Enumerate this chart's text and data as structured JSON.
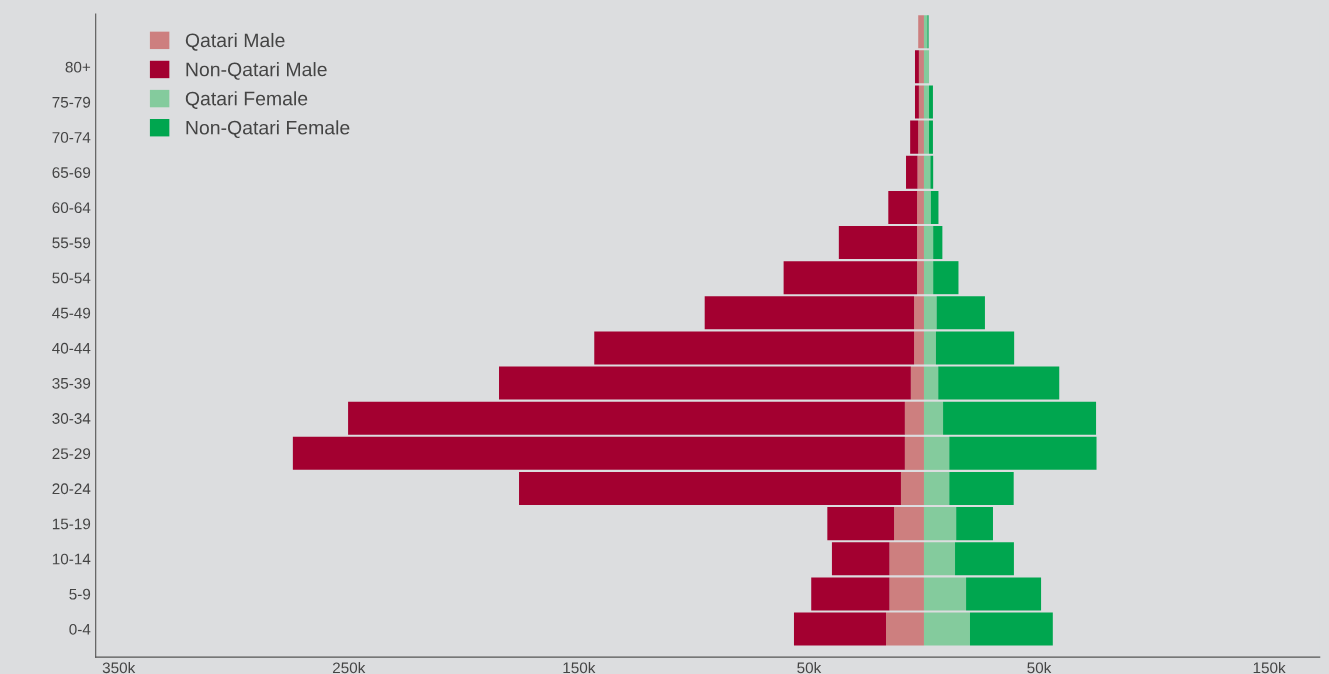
{
  "chart_data": {
    "type": "bar",
    "orientation": "horizontal",
    "stacked": true,
    "categories": [
      null,
      "80+",
      "75-79",
      "70-74",
      "65-69",
      "60-64",
      "55-59",
      "50-54",
      "45-49",
      "40-44",
      "35-39",
      "30-34",
      "25-29",
      "20-24",
      "15-19",
      "10-14",
      "5-9",
      "0-4"
    ],
    "series": [
      {
        "name": "Qatari Male",
        "color": "#cd7f7f",
        "values": [
          -2500,
          -2200,
          -2200,
          -2500,
          -2800,
          -3000,
          -3000,
          -3000,
          -4300,
          -4300,
          -5700,
          -8300,
          -8300,
          -10000,
          -13000,
          -15000,
          -15000,
          -16500
        ]
      },
      {
        "name": "Non-Qatari Male",
        "color": "#a30030",
        "values": [
          null,
          -1700,
          -1700,
          -3500,
          -5000,
          -12500,
          -34000,
          -58000,
          -91000,
          -139000,
          -179000,
          -242000,
          -266000,
          -166000,
          -29000,
          -25000,
          -34000,
          -40000
        ]
      },
      {
        "name": "Qatari Female",
        "color": "#84cb9d",
        "values": [
          1500,
          2200,
          2200,
          2200,
          2800,
          3000,
          4000,
          4000,
          5500,
          5200,
          6200,
          8300,
          11000,
          11000,
          14000,
          13500,
          18300,
          20000
        ]
      },
      {
        "name": "Non-Qatari Female",
        "color": "#00a64f",
        "values": [
          500,
          null,
          1700,
          1700,
          1200,
          3300,
          4000,
          11000,
          21000,
          34000,
          52600,
          66500,
          64000,
          28000,
          16000,
          25600,
          32600,
          36000
        ]
      }
    ],
    "xlim": [
      -360000,
      172000
    ],
    "xticks": [
      {
        "value": -350000,
        "label": "350k"
      },
      {
        "value": -250000,
        "label": "250k"
      },
      {
        "value": -150000,
        "label": "150k"
      },
      {
        "value": -50000,
        "label": "50k"
      },
      {
        "value": 50000,
        "label": "50k"
      },
      {
        "value": 150000,
        "label": "150k"
      }
    ],
    "grid": false,
    "legend": "top left"
  }
}
